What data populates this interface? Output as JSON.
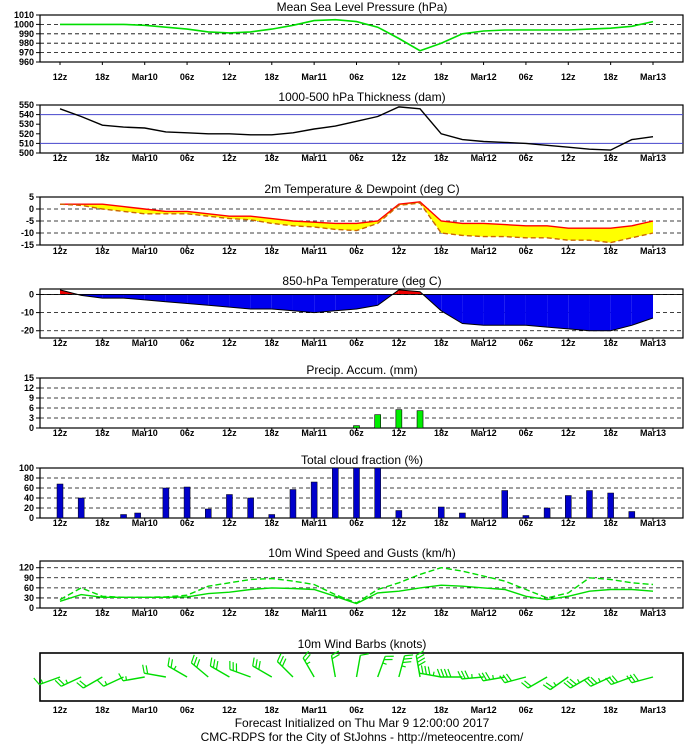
{
  "x_labels": [
    "12z",
    "18z",
    "Mar10",
    "06z",
    "12z",
    "18z",
    "Mar11",
    "06z",
    "12z",
    "18z",
    "Mar12",
    "06z",
    "12z",
    "18z",
    "Mar13"
  ],
  "footer": {
    "line1": "Forecast Initialized on Thu Mar  9 12:00:00 2017",
    "line2": "CMC-RDPS for the City of StJohns - http://meteocentre.com/"
  },
  "colors": {
    "pressure": "#00dd00",
    "thickness": "#000000",
    "ref_line": "#4444cc",
    "temp_line": "#ff0000",
    "dew_line": "#cc6600",
    "temp_fill": "#ffff00",
    "t850_cold": "#0000ee",
    "t850_warm": "#ee0000",
    "precip_bar": "#00ee00",
    "cloud_bar": "#0000cc",
    "wind_line": "#00dd00",
    "barb": "#00dd00"
  },
  "chart_data": [
    {
      "id": "pressure",
      "type": "line",
      "title": "Mean Sea Level Pressure (hPa)",
      "y_ticks": [
        960,
        970,
        980,
        990,
        1000,
        1010
      ],
      "ylim": [
        960,
        1010
      ],
      "x_hours": [
        0,
        3,
        6,
        9,
        12,
        15,
        18,
        21,
        24,
        27,
        30,
        33,
        36,
        39,
        42,
        45,
        48,
        51,
        54,
        57,
        60,
        63,
        66,
        69,
        72,
        75,
        78,
        81,
        84
      ],
      "series": [
        {
          "values": [
            1000,
            1000,
            1000,
            1000,
            999,
            997,
            995,
            992,
            991,
            992,
            995,
            999,
            1004,
            1005,
            1003,
            997,
            985,
            972,
            980,
            990,
            993,
            994,
            994,
            994,
            994,
            995,
            996,
            998,
            1003
          ]
        }
      ]
    },
    {
      "id": "thickness",
      "type": "line",
      "title": "1000-500 hPa Thickness (dam)",
      "y_ticks": [
        500,
        510,
        520,
        530,
        540,
        550
      ],
      "ylim": [
        500,
        550
      ],
      "reference_lines": [
        510,
        540
      ],
      "x_hours": [
        0,
        3,
        6,
        9,
        12,
        15,
        18,
        21,
        24,
        27,
        30,
        33,
        36,
        39,
        42,
        45,
        48,
        51,
        54,
        57,
        60,
        63,
        66,
        69,
        72,
        75,
        78,
        81,
        84
      ],
      "series": [
        {
          "values": [
            546,
            538,
            529,
            527,
            526,
            522,
            521,
            520,
            520,
            519,
            519,
            521,
            525,
            528,
            533,
            538,
            548,
            546,
            520,
            514,
            512,
            511,
            510,
            508,
            506,
            504,
            503,
            514,
            517
          ]
        }
      ]
    },
    {
      "id": "temperature",
      "type": "area",
      "title": "2m Temperature & Dewpoint (deg C)",
      "y_ticks": [
        -15,
        -10,
        -5,
        0,
        5
      ],
      "ylim": [
        -15,
        5
      ],
      "x_hours": [
        0,
        3,
        6,
        9,
        12,
        15,
        18,
        21,
        24,
        27,
        30,
        33,
        36,
        39,
        42,
        45,
        48,
        51,
        54,
        57,
        60,
        63,
        66,
        69,
        72,
        75,
        78,
        81,
        84
      ],
      "series": [
        {
          "values": [
            2,
            2,
            2,
            1,
            0,
            -1,
            -1,
            -2,
            -3,
            -3,
            -4,
            -5,
            -5.5,
            -6,
            -6,
            -5,
            2,
            3,
            -5,
            -6,
            -6,
            -6.5,
            -7,
            -7,
            -8,
            -8,
            -8,
            -7,
            -5
          ]
        },
        {
          "values": [
            2,
            1.5,
            0,
            -1,
            -2,
            -2,
            -2,
            -3,
            -4,
            -4.5,
            -6,
            -7,
            -7.5,
            -8.5,
            -9,
            -6,
            1.5,
            2.5,
            -10,
            -11,
            -11.5,
            -11.5,
            -12,
            -12,
            -13,
            -13,
            -14,
            -12,
            -10
          ]
        }
      ]
    },
    {
      "id": "t850",
      "type": "area",
      "title": "850-hPa Temperature (deg C)",
      "y_ticks": [
        -20,
        -10,
        0
      ],
      "ylim": [
        -24,
        3
      ],
      "x_hours": [
        0,
        3,
        6,
        9,
        12,
        15,
        18,
        21,
        24,
        27,
        30,
        33,
        36,
        39,
        42,
        45,
        48,
        51,
        54,
        57,
        60,
        63,
        66,
        69,
        72,
        75,
        78,
        81,
        84
      ],
      "series": [
        {
          "values": [
            2.5,
            -0.5,
            -2,
            -2,
            -3,
            -4,
            -5,
            -6,
            -7,
            -8,
            -8,
            -9,
            -10,
            -9,
            -8,
            -6,
            2.5,
            1.5,
            -9,
            -16,
            -17,
            -17,
            -17,
            -18,
            -19,
            -20,
            -20,
            -17,
            -13
          ]
        }
      ]
    },
    {
      "id": "precip",
      "type": "bar",
      "title": "Precip. Accum. (mm)",
      "y_ticks": [
        0,
        3,
        6,
        9,
        12,
        15
      ],
      "ylim": [
        0,
        15
      ],
      "x_hours": [
        42,
        45,
        48,
        51
      ],
      "values": [
        0.7,
        4,
        5.5,
        5.2
      ]
    },
    {
      "id": "cloud",
      "type": "bar",
      "title": "Total cloud fraction (%)",
      "y_ticks": [
        0,
        20,
        40,
        60,
        80,
        100
      ],
      "ylim": [
        0,
        100
      ],
      "x_hours": [
        0,
        3,
        9,
        11,
        15,
        18,
        21,
        24,
        27,
        30,
        33,
        36,
        39,
        42,
        45,
        48,
        54,
        57,
        63,
        66,
        69,
        72,
        75,
        78,
        81,
        84
      ],
      "values": [
        68,
        40,
        7,
        10,
        60,
        62,
        18,
        47,
        40,
        7,
        57,
        72,
        100,
        100,
        100,
        15,
        22,
        10,
        55,
        5,
        20,
        45,
        55,
        50,
        13,
        0
      ]
    },
    {
      "id": "wind",
      "type": "line",
      "title": "10m Wind Speed and Gusts (km/h)",
      "y_ticks": [
        0,
        30,
        60,
        90,
        120
      ],
      "ylim": [
        0,
        140
      ],
      "x_hours": [
        0,
        3,
        6,
        9,
        12,
        15,
        18,
        21,
        24,
        27,
        30,
        33,
        36,
        39,
        42,
        45,
        48,
        51,
        54,
        57,
        60,
        63,
        66,
        69,
        72,
        75,
        78,
        81,
        84
      ],
      "series": [
        {
          "values": [
            20,
            40,
            32,
            32,
            32,
            32,
            33,
            43,
            47,
            55,
            60,
            58,
            55,
            35,
            13,
            45,
            50,
            60,
            68,
            65,
            60,
            55,
            35,
            25,
            35,
            50,
            55,
            55,
            50
          ]
        },
        {
          "values": [
            25,
            60,
            35,
            32,
            32,
            33,
            38,
            65,
            75,
            85,
            88,
            80,
            70,
            40,
            15,
            55,
            75,
            100,
            120,
            110,
            95,
            80,
            55,
            30,
            45,
            90,
            85,
            75,
            70
          ]
        }
      ]
    },
    {
      "id": "barbs",
      "type": "scatter",
      "title": "10m Wind Barbs  (knots)",
      "x_hours": [
        0,
        3,
        6,
        9,
        12,
        15,
        18,
        21,
        24,
        27,
        30,
        33,
        36,
        39,
        42,
        45,
        48,
        51,
        54,
        57,
        60,
        63,
        66,
        69,
        72,
        75,
        78,
        81,
        84
      ],
      "direction_deg": [
        250,
        245,
        240,
        245,
        260,
        280,
        300,
        310,
        300,
        290,
        300,
        315,
        330,
        350,
        10,
        20,
        15,
        350,
        280,
        270,
        265,
        260,
        255,
        240,
        235,
        240,
        245,
        250,
        255
      ],
      "speed_kt": [
        15,
        25,
        20,
        15,
        15,
        20,
        25,
        30,
        30,
        30,
        30,
        30,
        25,
        20,
        10,
        25,
        35,
        40,
        45,
        40,
        35,
        35,
        30,
        20,
        25,
        35,
        35,
        30,
        30
      ]
    }
  ]
}
